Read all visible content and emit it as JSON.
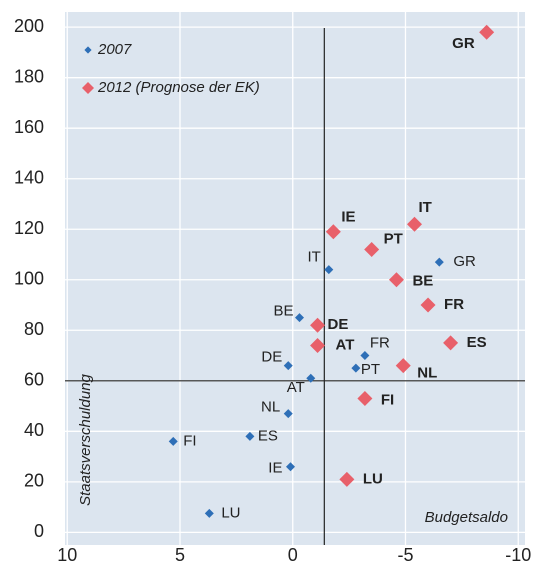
{
  "chart_data": {
    "type": "scatter",
    "ylabel": "Staatsverschuldung",
    "xlabel": "Budgetsaldo",
    "xlim": [
      10.1,
      -10.3
    ],
    "ylim": [
      -5,
      206
    ],
    "xticks": [
      10,
      5,
      0,
      -5,
      -10
    ],
    "yticks": [
      0,
      20,
      40,
      60,
      80,
      100,
      120,
      140,
      160,
      180,
      200
    ],
    "grid": true,
    "legend": "upper left",
    "hline": 60,
    "vline": -1.4,
    "series": [
      {
        "name": "2007",
        "color": "#2e6fb7",
        "labels": [
          "GR",
          "IT",
          "BE",
          "DE",
          "FR",
          "PT",
          "AT",
          "NL",
          "FI",
          "ES",
          "IE",
          "LU"
        ],
        "x": [
          -6.5,
          -1.6,
          -0.3,
          0.2,
          -3.2,
          -2.8,
          -0.8,
          0.2,
          5.3,
          1.9,
          0.1,
          3.7
        ],
        "values": [
          107,
          104,
          85,
          66,
          70,
          65,
          61,
          47,
          36,
          38,
          26,
          7.5
        ]
      },
      {
        "name": "2012 (Prognose der EK)",
        "color": "#e8606a",
        "labels": [
          "GR",
          "IE",
          "IT",
          "PT",
          "BE",
          "FR",
          "ES",
          "DE",
          "AT",
          "NL",
          "FI",
          "LU"
        ],
        "x": [
          -8.6,
          -1.8,
          -5.4,
          -3.5,
          -4.6,
          -6.0,
          -7.0,
          -1.1,
          -1.1,
          -4.9,
          -3.2,
          -2.4
        ],
        "values": [
          198,
          119,
          122,
          112,
          100,
          90,
          75,
          82,
          74,
          66,
          53,
          21
        ]
      }
    ]
  }
}
